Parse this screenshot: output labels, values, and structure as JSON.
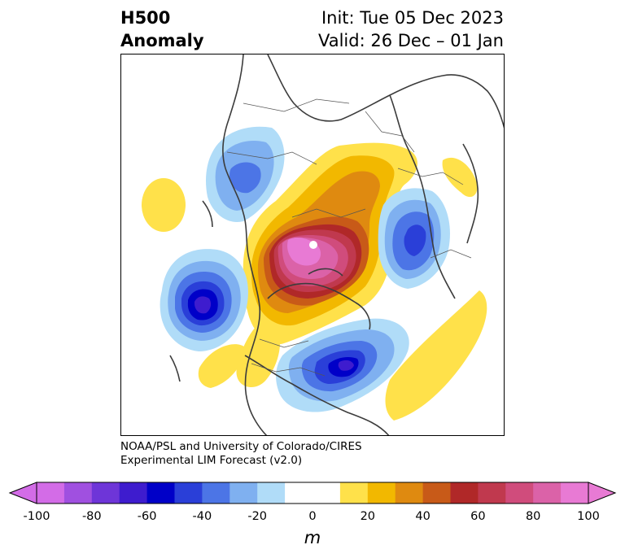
{
  "header": {
    "title_line1": "H500",
    "title_line2": "Anomaly",
    "init_text": "Init: Tue 05 Dec 2023",
    "valid_text": "Valid: 26 Dec – 01 Jan"
  },
  "map": {
    "projection": "polar stereographic, Northern Hemisphere",
    "field": "500 hPa geopotential height anomaly",
    "anomaly_centers": [
      {
        "name": "North Pole / Arctic high",
        "sign": "positive",
        "max_m": 100
      },
      {
        "name": "Greenland / NE Canada ridge",
        "sign": "positive",
        "approx_m": 50
      },
      {
        "name": "Scandinavia low",
        "sign": "negative",
        "approx_m": -40
      },
      {
        "name": "NE Pacific low",
        "sign": "negative",
        "approx_m": -70
      },
      {
        "name": "Eastern Asia / Japan low",
        "sign": "negative",
        "approx_m": -60
      },
      {
        "name": "Western Siberia low",
        "sign": "negative",
        "approx_m": -50
      },
      {
        "name": "Eastern US / Atlantic ridge",
        "sign": "positive",
        "approx_m": 20
      },
      {
        "name": "Western Europe ridge",
        "sign": "positive",
        "approx_m": 20
      },
      {
        "name": "Subtropical Pacific ridge",
        "sign": "positive",
        "approx_m": 20
      }
    ]
  },
  "credit": {
    "line1": "NOAA/PSL and University of Colorado/CIRES",
    "line2": "Experimental LIM Forecast (v2.0)"
  },
  "colorbar": {
    "colors": [
      "#d36ce7",
      "#a050e0",
      "#6e35d8",
      "#3e1cce",
      "#0000c8",
      "#2a3fd8",
      "#4c75e6",
      "#7fb0f0",
      "#b0dcf8",
      "#ffffff",
      "#ffffff",
      "#ffe14a",
      "#f2b800",
      "#df8a10",
      "#c85a18",
      "#b02828",
      "#c0394e",
      "#d04c7c",
      "#db62a8",
      "#e87ad4"
    ],
    "tick_labels": [
      "-100",
      "-80",
      "-60",
      "-40",
      "-20",
      "0",
      "20",
      "40",
      "60",
      "80",
      "100"
    ],
    "unit_label": "m"
  }
}
